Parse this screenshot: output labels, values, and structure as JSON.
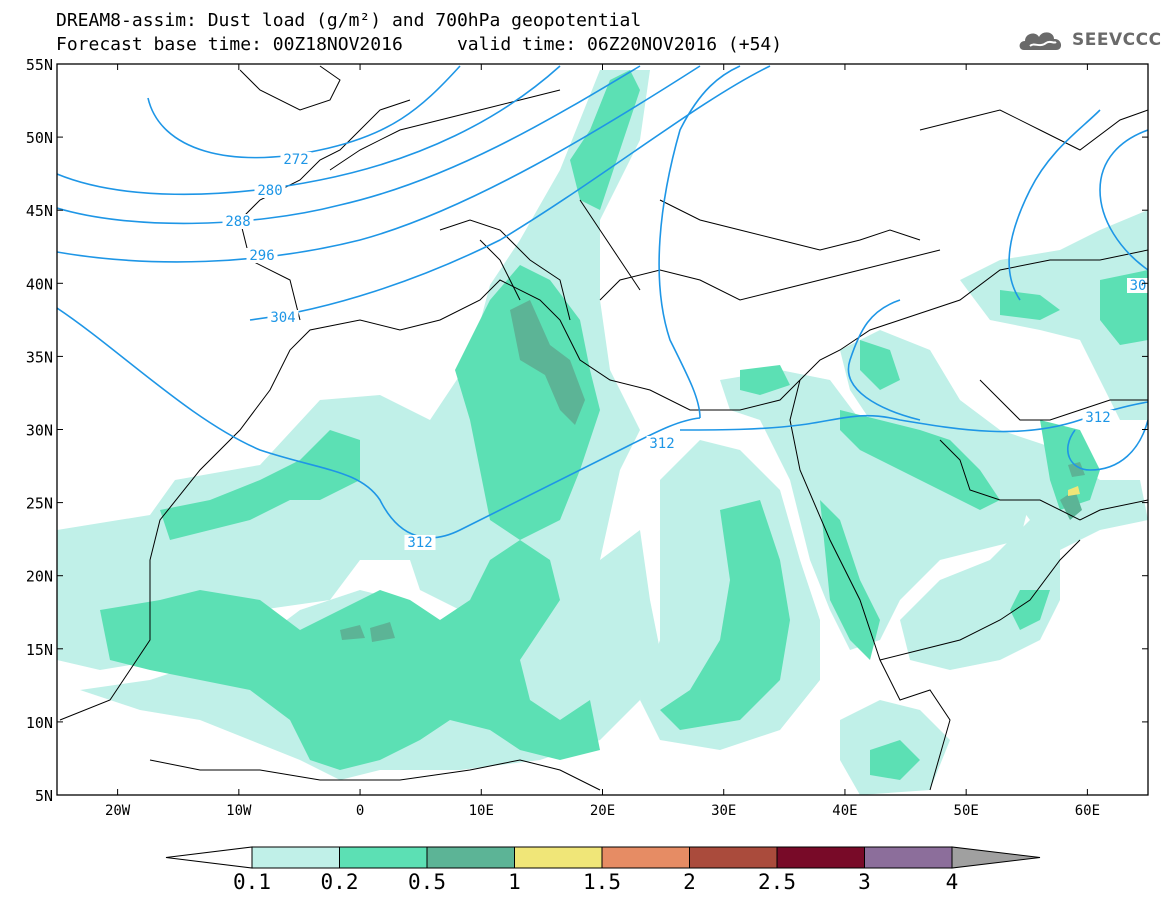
{
  "header": {
    "line1": "DREAM8-assim: Dust load (g/m²) and 700hPa geopotential",
    "line2": "Forecast base time: 00Z18NOV2016     valid time: 06Z20NOV2016 (+54)"
  },
  "logo": {
    "text": "SEEVCCC",
    "icon": "cloud-logo-icon",
    "color": "#6a6a6a"
  },
  "map": {
    "lon_range": [
      -25,
      65
    ],
    "lat_range": [
      5,
      55
    ],
    "lat_ticks": [
      "55N",
      "50N",
      "45N",
      "40N",
      "35N",
      "30N",
      "25N",
      "20N",
      "15N",
      "10N",
      "5N"
    ],
    "lon_ticks": [
      "20W",
      "10W",
      "0",
      "10E",
      "20E",
      "30E",
      "40E",
      "50E",
      "60E"
    ],
    "contour_color": "#1e96e6",
    "contour_labels": [
      "272",
      "280",
      "288",
      "296",
      "304",
      "312",
      "312",
      "312",
      "30"
    ]
  },
  "colorbar": {
    "levels": [
      "0.1",
      "0.2",
      "0.5",
      "1",
      "1.5",
      "2",
      "2.5",
      "3",
      "4"
    ],
    "colors": [
      "#c0f0e8",
      "#5ce0b4",
      "#5cb496",
      "#f0e678",
      "#e68c64",
      "#aa4b3c",
      "#780a28",
      "#8c6e9b",
      "#a0a0a0"
    ]
  }
}
